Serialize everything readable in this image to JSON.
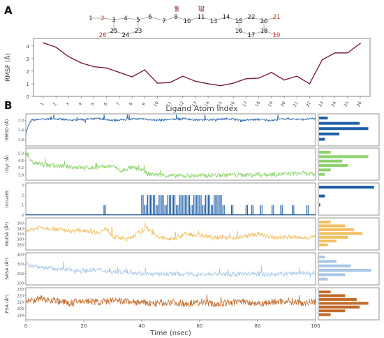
{
  "panels": {
    "a": "A",
    "b": "B"
  },
  "structure": {
    "atoms": [
      {
        "n": "1",
        "c": "#222222"
      },
      {
        "n": "2",
        "c": "#d23c2a"
      },
      {
        "n": "3",
        "c": "#222222"
      },
      {
        "n": "4",
        "c": "#222222"
      },
      {
        "n": "5",
        "c": "#222222"
      },
      {
        "n": "6",
        "c": "#222222"
      },
      {
        "n": "7",
        "c": "#222222"
      },
      {
        "n": "8",
        "c": "#222222"
      },
      {
        "n": "9",
        "c": "#d23c2a"
      },
      {
        "n": "10",
        "c": "#222222"
      },
      {
        "n": "11",
        "c": "#222222"
      },
      {
        "n": "12",
        "c": "#d23c2a"
      },
      {
        "n": "13",
        "c": "#222222"
      },
      {
        "n": "14",
        "c": "#222222"
      },
      {
        "n": "15",
        "c": "#222222"
      },
      {
        "n": "16",
        "c": "#222222"
      },
      {
        "n": "17",
        "c": "#222222"
      },
      {
        "n": "18",
        "c": "#222222"
      },
      {
        "n": "19",
        "c": "#d23c2a"
      },
      {
        "n": "20",
        "c": "#222222"
      },
      {
        "n": "21",
        "c": "#d23c2a"
      },
      {
        "n": "22",
        "c": "#222222"
      },
      {
        "n": "23",
        "c": "#222222"
      },
      {
        "n": "24",
        "c": "#222222"
      },
      {
        "n": "25",
        "c": "#222222"
      },
      {
        "n": "26",
        "c": "#d23c2a"
      }
    ]
  },
  "chart_data": [
    {
      "type": "line",
      "panel": "A",
      "xlabel": "Ligand Atom Index",
      "ylabel": "RMSF (Å)",
      "color": "#7a1f3a",
      "categories": [
        "1",
        "2",
        "3",
        "4",
        "5",
        "6",
        "7",
        "8",
        "9",
        "10",
        "11",
        "12",
        "13",
        "14",
        "15",
        "16",
        "17",
        "18",
        "19",
        "20",
        "21",
        "22",
        "23",
        "24",
        "25",
        "26"
      ],
      "values": [
        4.25,
        3.9,
        3.15,
        2.65,
        2.35,
        2.25,
        1.9,
        1.55,
        2.1,
        1.05,
        1.1,
        1.6,
        1.2,
        1.0,
        0.85,
        1.05,
        1.4,
        1.45,
        1.9,
        1.3,
        1.6,
        1.0,
        2.9,
        3.45,
        3.45,
        4.2
      ],
      "ylim": [
        0,
        4.6
      ],
      "yticks": [
        "0",
        "1",
        "2",
        "3",
        "4"
      ]
    },
    {
      "type": "line",
      "panel": "B",
      "xlabel": "Time (nsec)",
      "xlim": [
        0,
        100
      ],
      "xticks": [
        "0",
        "20",
        "40",
        "60",
        "80",
        "100"
      ],
      "series": [
        {
          "ylabel": "RMSD (Å)",
          "color": "#1f5fa8",
          "ylim": [
            1.4,
            3.4
          ],
          "yticks": [
            "1.8",
            "2.4",
            "3.0"
          ],
          "segments": [
            [
              0,
              2.2
            ],
            [
              1,
              2.7
            ],
            [
              2,
              3.0
            ],
            [
              5,
              3.05
            ],
            [
              10,
              3.1
            ],
            [
              15,
              3.0
            ],
            [
              20,
              3.05
            ],
            [
              25,
              3.1
            ],
            [
              30,
              3.0
            ],
            [
              35,
              3.05
            ],
            [
              40,
              3.1
            ],
            [
              45,
              3.0
            ],
            [
              50,
              3.05
            ],
            [
              55,
              3.1
            ],
            [
              60,
              3.0
            ],
            [
              65,
              3.05
            ],
            [
              70,
              3.1
            ],
            [
              75,
              3.0
            ],
            [
              80,
              3.05
            ],
            [
              85,
              3.0
            ],
            [
              90,
              3.1
            ],
            [
              95,
              3.05
            ],
            [
              100,
              3.1
            ]
          ],
          "hist": [
            0.15,
            0.7,
            0.85,
            0.35,
            0.1
          ]
        },
        {
          "ylabel": "rGyr (Å)",
          "color": "#8fd36d",
          "ylim": [
            3.5,
            5.3
          ],
          "yticks": [
            "3.8",
            "4.2",
            "4.6",
            "5.0"
          ],
          "segments": [
            [
              0,
              5.1
            ],
            [
              2,
              4.5
            ],
            [
              5,
              4.4
            ],
            [
              10,
              4.3
            ],
            [
              15,
              4.25
            ],
            [
              20,
              4.2
            ],
            [
              25,
              4.2
            ],
            [
              30,
              4.3
            ],
            [
              33,
              4.0
            ],
            [
              36,
              4.2
            ],
            [
              40,
              4.1
            ],
            [
              42,
              3.85
            ],
            [
              50,
              3.75
            ],
            [
              60,
              3.75
            ],
            [
              70,
              3.8
            ],
            [
              80,
              3.8
            ],
            [
              90,
              3.85
            ],
            [
              95,
              3.9
            ],
            [
              100,
              3.8
            ]
          ],
          "hist": [
            0.2,
            0.85,
            0.4,
            0.5,
            0.2,
            0.1
          ]
        },
        {
          "ylabel": "intraHB",
          "color": "#1f5fa8",
          "ylim": [
            0,
            3.2
          ],
          "yticks": [
            "0",
            "1",
            "2",
            "3"
          ],
          "spikes": [
            27,
            40,
            41,
            42,
            43,
            44,
            45,
            46,
            47,
            48,
            49,
            50,
            51,
            52,
            53,
            54,
            55,
            56,
            57,
            58,
            59,
            60,
            61,
            62,
            63,
            64,
            65,
            66,
            67,
            68,
            71,
            76,
            78,
            81,
            85,
            88,
            92,
            97
          ],
          "spike_heights": [
            1,
            2,
            1,
            2,
            2,
            2,
            1,
            2,
            2,
            1,
            2,
            2,
            2,
            1,
            2,
            2,
            2,
            2,
            1,
            2,
            2,
            2,
            1,
            2,
            2,
            1,
            2,
            2,
            2,
            1,
            1,
            1,
            1,
            1,
            1,
            1,
            1,
            1
          ],
          "hist": [
            0.95,
            0.1,
            0.02
          ]
        },
        {
          "ylabel": "MolSA (Å²)",
          "color": "#f0c060",
          "ylim": [
            260,
            380
          ],
          "yticks": [
            "280",
            "300",
            "320",
            "340",
            "360"
          ],
          "segments": [
            [
              0,
              330
            ],
            [
              5,
              345
            ],
            [
              10,
              340
            ],
            [
              15,
              330
            ],
            [
              20,
              335
            ],
            [
              25,
              325
            ],
            [
              28,
              340
            ],
            [
              30,
              310
            ],
            [
              35,
              300
            ],
            [
              40,
              330
            ],
            [
              42,
              345
            ],
            [
              45,
              310
            ],
            [
              50,
              300
            ],
            [
              55,
              320
            ],
            [
              60,
              315
            ],
            [
              65,
              310
            ],
            [
              70,
              305
            ],
            [
              75,
              310
            ],
            [
              80,
              320
            ],
            [
              85,
              305
            ],
            [
              90,
              310
            ],
            [
              95,
              305
            ],
            [
              100,
              310
            ]
          ],
          "hist": [
            0.2,
            0.45,
            0.6,
            0.75,
            0.5,
            0.3,
            0.15
          ]
        },
        {
          "ylabel": "SASA (Å²)",
          "color": "#a8c8e6",
          "ylim": [
            80,
            420
          ],
          "yticks": [
            "100",
            "200",
            "300",
            "400"
          ],
          "segments": [
            [
              0,
              300
            ],
            [
              5,
              270
            ],
            [
              10,
              250
            ],
            [
              15,
              240
            ],
            [
              20,
              230
            ],
            [
              25,
              240
            ],
            [
              30,
              220
            ],
            [
              35,
              220
            ],
            [
              40,
              200
            ],
            [
              45,
              190
            ],
            [
              50,
              200
            ],
            [
              55,
              195
            ],
            [
              60,
              190
            ],
            [
              65,
              200
            ],
            [
              70,
              190
            ],
            [
              75,
              200
            ],
            [
              80,
              195
            ],
            [
              85,
              190
            ],
            [
              90,
              200
            ],
            [
              95,
              205
            ],
            [
              100,
              200
            ]
          ],
          "hist": [
            0.1,
            0.3,
            0.55,
            0.9,
            0.45,
            0.15
          ]
        },
        {
          "ylabel": "PSA (Å²)",
          "color": "#c06a2a",
          "ylim": [
            183,
            232
          ],
          "yticks": [
            "190",
            "200",
            "210",
            "220",
            "230"
          ],
          "segments": [
            [
              0,
              210
            ],
            [
              5,
              215
            ],
            [
              10,
              213
            ],
            [
              15,
              208
            ],
            [
              20,
              212
            ],
            [
              25,
              210
            ],
            [
              30,
              212
            ],
            [
              35,
              211
            ],
            [
              40,
              209
            ],
            [
              45,
              208
            ],
            [
              50,
              210
            ],
            [
              55,
              208
            ],
            [
              60,
              210
            ],
            [
              65,
              207
            ],
            [
              70,
              209
            ],
            [
              75,
              211
            ],
            [
              80,
              208
            ],
            [
              85,
              210
            ],
            [
              90,
              212
            ],
            [
              95,
              209
            ],
            [
              100,
              211
            ]
          ],
          "hist": [
            0.2,
            0.45,
            0.65,
            0.85,
            0.7,
            0.45,
            0.2
          ]
        }
      ]
    }
  ]
}
